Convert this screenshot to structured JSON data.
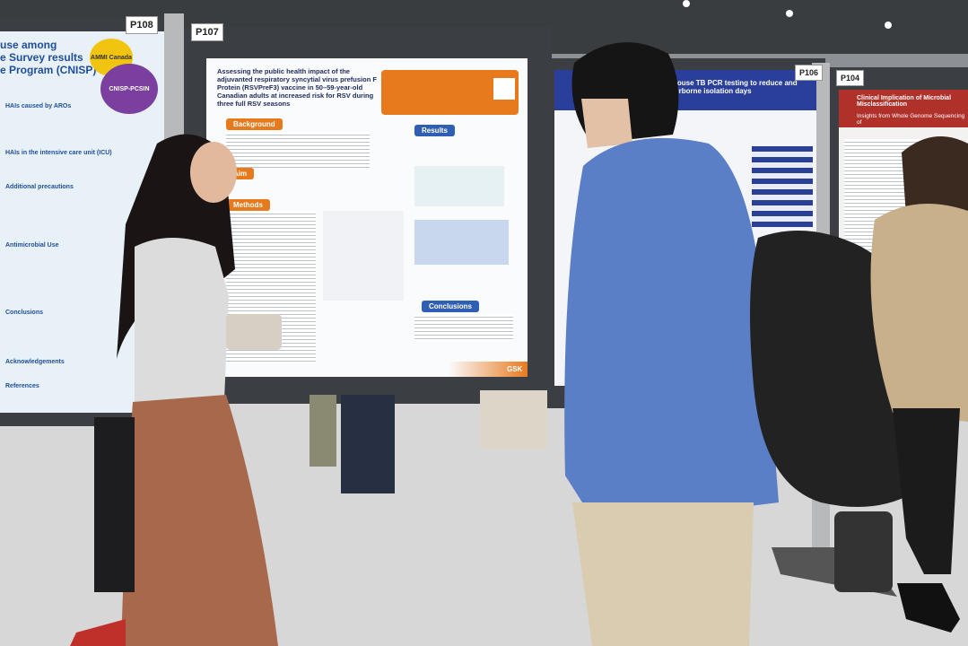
{
  "poster_labels": [
    "P108",
    "P107",
    "P106",
    "P104"
  ],
  "left_poster": {
    "title_lines": [
      "use among",
      "e Survey results",
      "e Program (CNISP)"
    ],
    "logos": [
      "AMMI Canada",
      "CNISP-PCSIN"
    ],
    "sections": [
      "HAIs caused by AROs",
      "HAIs in the intensive care unit (ICU)",
      "Additional precautions",
      "Antimicrobial Use",
      "Conclusions",
      "Acknowledgements",
      "References"
    ]
  },
  "center_poster": {
    "title": "Assessing the public health impact of the adjuvanted respiratory syncytial virus prefusion F Protein (RSVPreF3) vaccine in 50–59-year-old Canadian adults at increased risk for RSV during three full RSV seasons",
    "sections": [
      "Background",
      "Aim",
      "Methods",
      "Results",
      "Conclusions"
    ],
    "brand": "GSK"
  },
  "right_poster": {
    "title": "house TB PCR testing to reduce and airborne isolation days"
  },
  "far_right_poster": {
    "title": "Clinical Implication of Microbial Misclassification",
    "subtitle": "Insights from Whole Genome Sequencing of"
  }
}
